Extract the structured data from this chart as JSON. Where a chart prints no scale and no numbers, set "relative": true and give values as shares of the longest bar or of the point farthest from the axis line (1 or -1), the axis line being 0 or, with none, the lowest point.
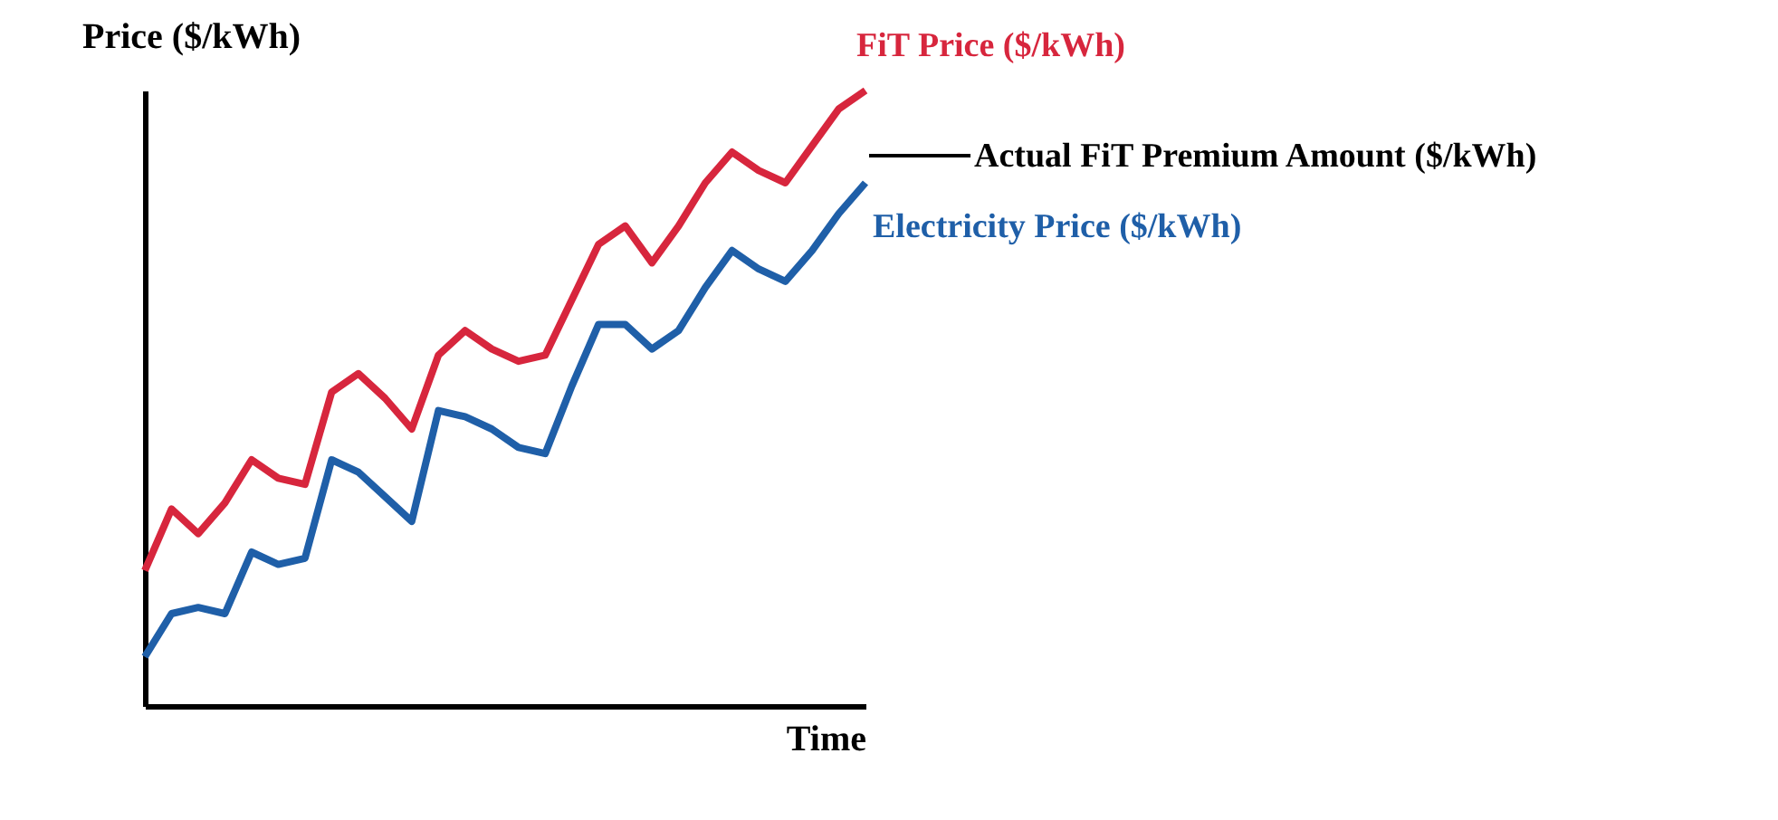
{
  "chart_data": {
    "type": "line",
    "relative": true,
    "xlabel": "Time",
    "ylabel": "Price ($/kWh)",
    "tick_labels": false,
    "marker": "none",
    "line_style": "solid",
    "categories": [
      null,
      null,
      null,
      null,
      null,
      null,
      null,
      null,
      null,
      null,
      null,
      null,
      null,
      null,
      null,
      null,
      null,
      null,
      null,
      null,
      null,
      null,
      null,
      null,
      null,
      null,
      null,
      null
    ],
    "series": [
      {
        "name": "FiT Price ($/kWh)",
        "color": "#d7263d",
        "values": [
          0.22,
          0.32,
          0.28,
          0.33,
          0.4,
          0.37,
          0.36,
          0.51,
          0.54,
          0.5,
          0.45,
          0.57,
          0.61,
          0.58,
          0.56,
          0.57,
          0.66,
          0.75,
          0.78,
          0.72,
          0.78,
          0.85,
          0.9,
          0.87,
          0.85,
          0.91,
          0.97,
          1.0
        ]
      },
      {
        "name": "Electricity Price ($/kWh)",
        "color": "#1f5fa8",
        "values": [
          0.08,
          0.15,
          0.16,
          0.15,
          0.25,
          0.23,
          0.24,
          0.4,
          0.38,
          0.34,
          0.3,
          0.48,
          0.47,
          0.45,
          0.42,
          0.41,
          0.52,
          0.62,
          0.62,
          0.58,
          0.61,
          0.68,
          0.74,
          0.71,
          0.69,
          0.74,
          0.8,
          0.85
        ]
      }
    ],
    "annotations": [
      "Actual FiT Premium Amount ($/kWh)"
    ]
  }
}
